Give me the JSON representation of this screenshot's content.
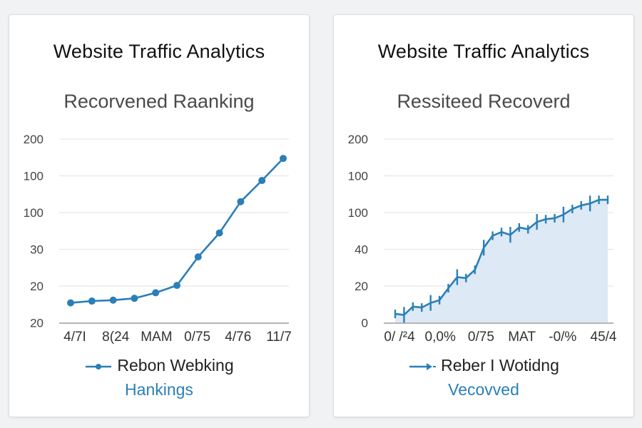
{
  "chart_data": [
    {
      "type": "line",
      "title": "Website Traffic Analytics",
      "subtitle": "Recorvened Raanking",
      "y_tick_labels": [
        "200",
        "100",
        "100",
        "30",
        "20",
        "20"
      ],
      "x_tick_labels": [
        "4/7I",
        "8(24",
        "MAM",
        "0/75",
        "4/76",
        "11/7"
      ],
      "grid": true,
      "legend_position": "bottom",
      "series": [
        {
          "name": "Rebon Webking",
          "y": [
            22,
            24,
            25,
            27,
            33,
            41,
            72,
            98,
            132,
            155,
            179
          ]
        }
      ],
      "legend_sub": "Hankings",
      "colors": {
        "line": "#2a7fb8",
        "grid": "#e2e2e2",
        "axis": "#b5b5b5"
      }
    },
    {
      "type": "area",
      "title": "Website Traffic Analytics",
      "subtitle": "Ressiteed Recoverd",
      "y_tick_labels": [
        "200",
        "100",
        "100",
        "40",
        "20",
        "0"
      ],
      "x_tick_labels": [
        "0/ /²4",
        "0,0%",
        "0/75",
        "MAT",
        "-0/%",
        "45/4"
      ],
      "grid": true,
      "legend_position": "bottom",
      "series": [
        {
          "name": "Reber I Wotidng",
          "y": [
            10,
            9,
            18,
            17,
            22,
            25,
            38,
            50,
            49,
            58,
            82,
            95,
            99,
            96,
            104,
            102,
            110,
            113,
            114,
            118,
            124,
            128,
            130,
            134,
            134
          ]
        }
      ],
      "legend_sub": "Vecovved",
      "colors": {
        "line": "#2a7fb8",
        "fill": "#dde9f5",
        "grid": "#e2e2e2",
        "axis": "#b5b5b5"
      }
    }
  ]
}
